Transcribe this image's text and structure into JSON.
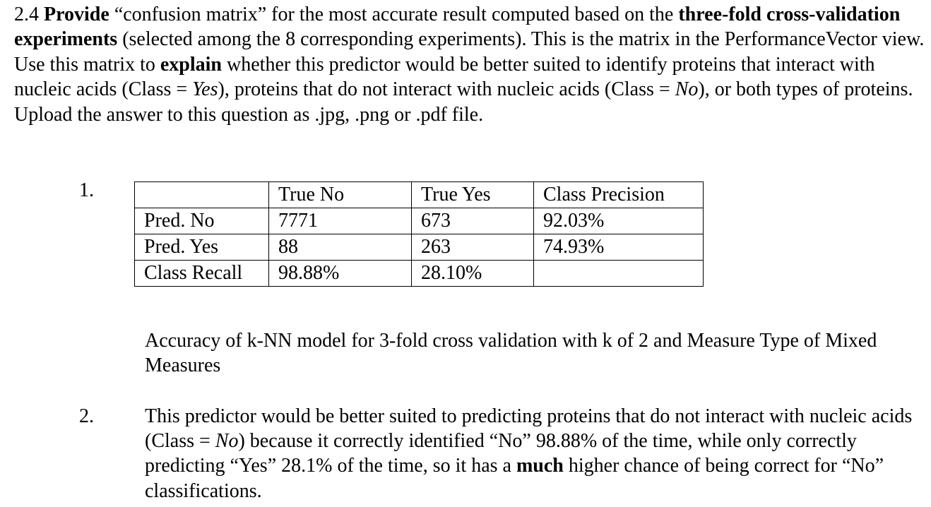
{
  "question": {
    "number": "2.4",
    "s1": "Provide",
    "s2": " “confusion matrix” for the most accurate result computed based on the ",
    "s3": "three-fold cross-validation experiments",
    "s4": " (selected among the 8 corresponding experiments). This is the matrix in the PerformanceVector view. Use this matrix to ",
    "s5": "explain",
    "s6": " whether this predictor would be better suited to identify proteins that interact with nucleic acids (Class = ",
    "s7": "Yes",
    "s8": "), proteins that do not interact with nucleic acids (Class = ",
    "s9": "No",
    "s10": "), or both types of proteins. Upload the answer to this question as .jpg, .png or .pdf file."
  },
  "list": {
    "item1_number": "1.",
    "item2_number": "2."
  },
  "confusion_matrix": {
    "header": [
      "",
      "True No",
      "True Yes",
      "Class Precision"
    ],
    "rows": [
      [
        "Pred. No",
        "7771",
        "673",
        "92.03%"
      ],
      [
        "Pred. Yes",
        "88",
        "263",
        "74.93%"
      ],
      [
        "Class Recall",
        "98.88%",
        "28.10%",
        ""
      ]
    ]
  },
  "caption": "Accuracy of k-NN model for 3-fold cross validation with k of 2 and Measure Type of Mixed Measures",
  "answer": {
    "s1": "This predictor would be better suited to predicting proteins that do not interact with nucleic acids (Class = ",
    "s2": "No",
    "s3": ") because it correctly identified “No” 98.88% of the time, while only correctly predicting “Yes” 28.1% of the time, so it has a ",
    "s4": "much",
    "s5": " higher chance of being correct for “No” classifications."
  }
}
